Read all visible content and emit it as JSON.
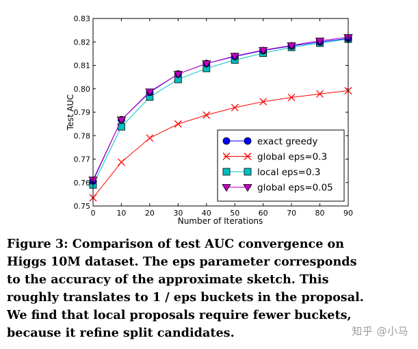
{
  "chart_data": {
    "type": "line",
    "xlabel": "Number of Iterations",
    "ylabel": "Test AUC",
    "xlim": [
      0,
      90
    ],
    "ylim": [
      0.75,
      0.83
    ],
    "x_ticks": [
      "0",
      "10",
      "20",
      "30",
      "40",
      "50",
      "60",
      "70",
      "80",
      "90"
    ],
    "y_ticks": [
      "0.75",
      "0.76",
      "0.77",
      "0.78",
      "0.79",
      "0.80",
      "0.81",
      "0.82",
      "0.83"
    ],
    "legend_position": "lower-right",
    "x": [
      0,
      10,
      20,
      30,
      40,
      50,
      60,
      70,
      80,
      90
    ],
    "series": [
      {
        "name": "exact greedy",
        "color": "#0000ff",
        "marker": "circle",
        "values": [
          0.7607,
          0.7868,
          0.7985,
          0.8063,
          0.8108,
          0.8138,
          0.8163,
          0.8183,
          0.82,
          0.8215
        ]
      },
      {
        "name": "global eps=0.3",
        "color": "#ff0000",
        "marker": "x",
        "values": [
          0.7535,
          0.7687,
          0.779,
          0.785,
          0.7888,
          0.792,
          0.7945,
          0.7963,
          0.7978,
          0.7992
        ]
      },
      {
        "name": "local eps=0.3",
        "color": "#00bfbf",
        "marker": "square",
        "values": [
          0.759,
          0.7838,
          0.7965,
          0.804,
          0.8087,
          0.8123,
          0.8152,
          0.8177,
          0.8195,
          0.8212
        ]
      },
      {
        "name": "global eps=0.05",
        "color": "#bf00bf",
        "marker": "triangle-down",
        "values": [
          0.7612,
          0.7868,
          0.7988,
          0.8063,
          0.8108,
          0.814,
          0.8165,
          0.8185,
          0.8205,
          0.822
        ]
      }
    ]
  },
  "caption": {
    "lines": [
      "Figure 3: Comparison of test AUC convergence on",
      "Higgs 10M dataset. The eps parameter corresponds",
      "to the accuracy of the approximate sketch.  This",
      "roughly translates to 1 / eps buckets in the proposal.",
      "We find that local proposals require fewer buckets,",
      "because it refine split candidates."
    ]
  },
  "watermark": "知乎 @小马"
}
